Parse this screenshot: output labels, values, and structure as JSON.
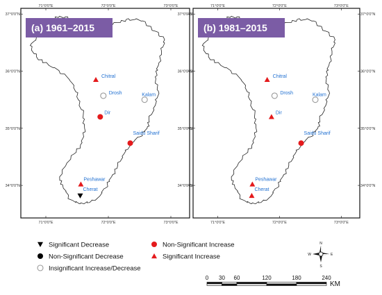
{
  "panels": [
    {
      "title": "(a) 1961–2015",
      "stations": [
        {
          "name": "Chitral",
          "lon": 71.8,
          "lat": 35.85,
          "marker": "sig-increase"
        },
        {
          "name": "Drosh",
          "lon": 71.92,
          "lat": 35.57,
          "marker": "insig"
        },
        {
          "name": "Kalam",
          "lon": 72.58,
          "lat": 35.5,
          "marker": "insig"
        },
        {
          "name": "Dir",
          "lon": 71.87,
          "lat": 35.2,
          "marker": "nonsig-increase"
        },
        {
          "name": "Saidu Sharif",
          "lon": 72.35,
          "lat": 34.74,
          "marker": "nonsig-increase"
        },
        {
          "name": "Peshawar",
          "lon": 71.56,
          "lat": 34.02,
          "marker": "sig-increase"
        },
        {
          "name": "Cherat",
          "lon": 71.55,
          "lat": 33.82,
          "marker": "sig-decrease"
        }
      ]
    },
    {
      "title": "(b) 1981–2015",
      "stations": [
        {
          "name": "Chitral",
          "lon": 71.8,
          "lat": 35.85,
          "marker": "sig-increase"
        },
        {
          "name": "Drosh",
          "lon": 71.92,
          "lat": 35.57,
          "marker": "insig"
        },
        {
          "name": "Kalam",
          "lon": 72.58,
          "lat": 35.5,
          "marker": "insig"
        },
        {
          "name": "Dir",
          "lon": 71.87,
          "lat": 35.2,
          "marker": "sig-increase"
        },
        {
          "name": "Saidu Sharif",
          "lon": 72.35,
          "lat": 34.74,
          "marker": "nonsig-increase"
        },
        {
          "name": "Peshawar",
          "lon": 71.56,
          "lat": 34.02,
          "marker": "sig-increase"
        },
        {
          "name": "Cherat",
          "lon": 71.55,
          "lat": 33.82,
          "marker": "sig-increase"
        }
      ]
    }
  ],
  "lon_ticks": [
    {
      "value": 71,
      "label": "71°0'0\"E"
    },
    {
      "value": 72,
      "label": "72°0'0\"E"
    },
    {
      "value": 73,
      "label": "73°0'0\"E"
    }
  ],
  "lat_ticks": [
    {
      "value": 37,
      "label": "37°0'0\"N"
    },
    {
      "value": 36,
      "label": "36°0'0\"N"
    },
    {
      "value": 35,
      "label": "35°0'0\"N"
    },
    {
      "value": 34,
      "label": "34°0'0\"N"
    }
  ],
  "extent": {
    "lon": [
      70.6,
      73.3
    ],
    "lat": [
      33.43,
      37.1
    ]
  },
  "basin_outline": [
    [
      71.15,
      36.95
    ],
    [
      71.35,
      36.95
    ],
    [
      71.5,
      36.82
    ],
    [
      71.7,
      36.88
    ],
    [
      71.95,
      36.8
    ],
    [
      72.15,
      36.85
    ],
    [
      72.32,
      36.92
    ],
    [
      72.55,
      36.88
    ],
    [
      72.75,
      36.7
    ],
    [
      72.9,
      36.55
    ],
    [
      72.85,
      36.35
    ],
    [
      72.8,
      36.1
    ],
    [
      72.75,
      35.9
    ],
    [
      72.8,
      35.65
    ],
    [
      72.75,
      35.4
    ],
    [
      72.65,
      35.15
    ],
    [
      72.62,
      35.0
    ],
    [
      72.5,
      34.85
    ],
    [
      72.35,
      34.72
    ],
    [
      72.25,
      34.55
    ],
    [
      72.15,
      34.35
    ],
    [
      72.05,
      34.15
    ],
    [
      71.95,
      33.95
    ],
    [
      71.85,
      33.8
    ],
    [
      71.7,
      33.7
    ],
    [
      71.55,
      33.68
    ],
    [
      71.4,
      33.75
    ],
    [
      71.28,
      33.95
    ],
    [
      71.22,
      34.15
    ],
    [
      71.32,
      34.35
    ],
    [
      71.45,
      34.55
    ],
    [
      71.58,
      34.75
    ],
    [
      71.62,
      35.0
    ],
    [
      71.6,
      35.25
    ],
    [
      71.52,
      35.5
    ],
    [
      71.45,
      35.75
    ],
    [
      71.3,
      35.95
    ],
    [
      71.05,
      36.1
    ],
    [
      70.85,
      36.25
    ],
    [
      70.75,
      36.45
    ],
    [
      70.9,
      36.62
    ],
    [
      71.05,
      36.8
    ]
  ],
  "legend": [
    {
      "label": "Significant Decrease",
      "marker": "sig-decrease"
    },
    {
      "label": "Non-Significant Decrease",
      "marker": "nonsig-decrease"
    },
    {
      "label": "Insignificant Increase/Decrease",
      "marker": "insig"
    },
    {
      "label": "Non-Significant Increase",
      "marker": "nonsig-increase"
    },
    {
      "label": "Significant Increase",
      "marker": "sig-increase"
    }
  ],
  "scale_bar": {
    "labels": [
      "0",
      "30",
      "60",
      "120",
      "180",
      "240"
    ],
    "values": [
      0,
      30,
      60,
      120,
      180,
      240
    ],
    "unit": "KM"
  },
  "compass": {
    "n": "N",
    "s": "S",
    "e": "E",
    "w": "W"
  },
  "colors": {
    "increase": "#e41a1c",
    "decrease": "#000000",
    "insig": "#9a9a9a",
    "title_bg": "#7b5ca5",
    "label": "#1f6fd1"
  }
}
